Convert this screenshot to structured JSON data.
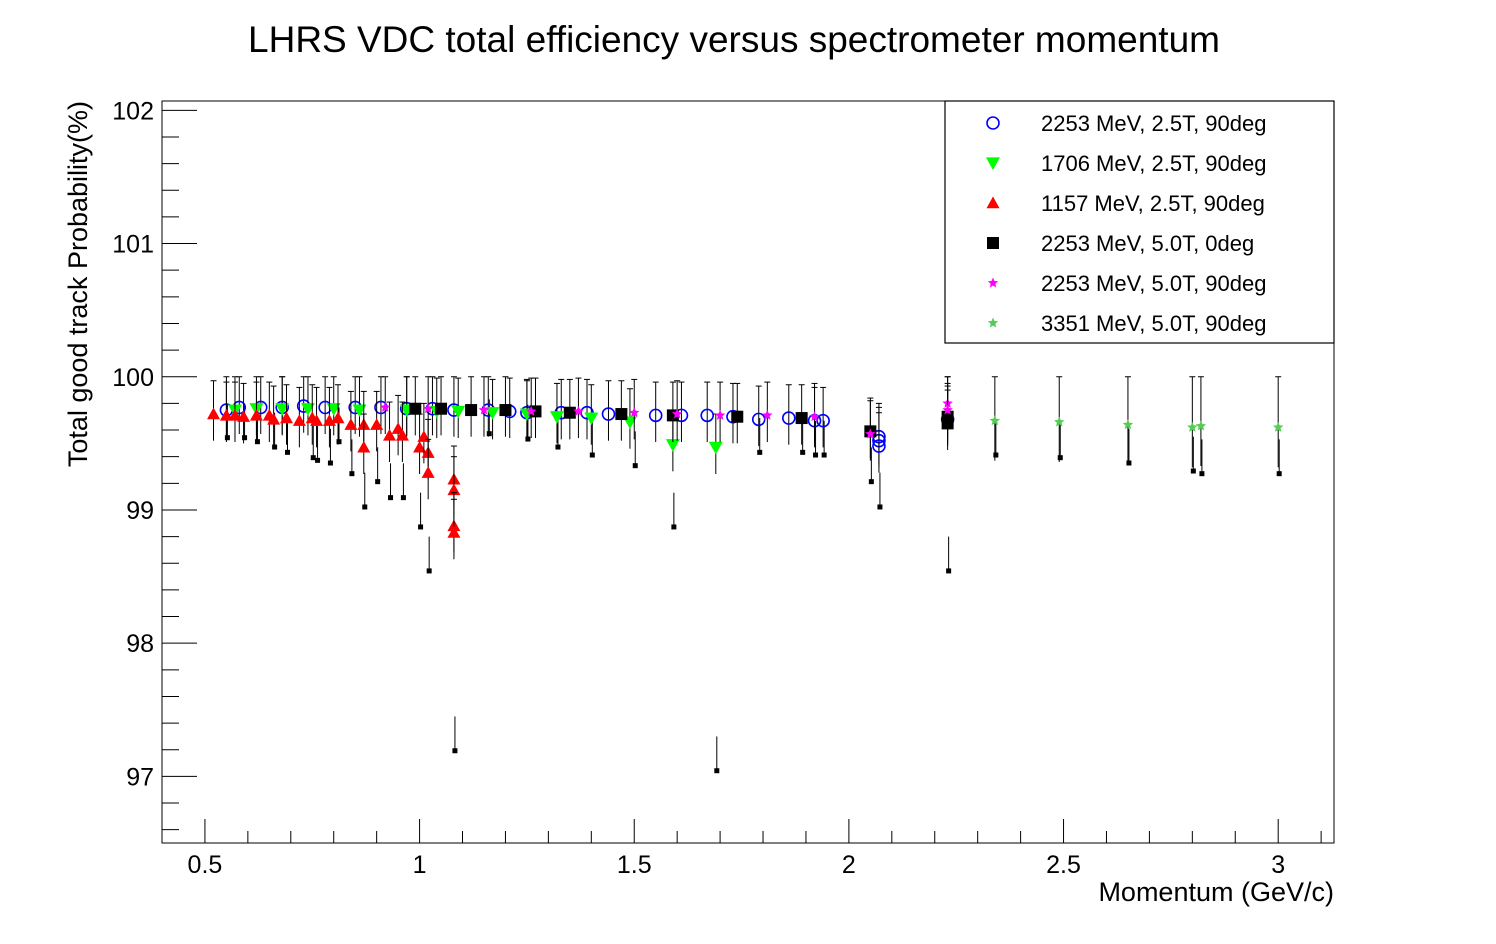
{
  "chart_data": {
    "type": "scatter",
    "title": "LHRS VDC total efficiency versus spectrometer momentum",
    "xlabel": "Momentum (GeV/c)",
    "ylabel": "Total good track Probability(%)",
    "xlim": [
      0.4,
      3.13
    ],
    "ylim": [
      96.5,
      102.07
    ],
    "x_ticks": [
      0.5,
      1,
      1.5,
      2,
      2.5,
      3
    ],
    "x_tick_labels": [
      "0.5",
      "1",
      "1.5",
      "2",
      "2.5",
      "3"
    ],
    "y_ticks": [
      97,
      98,
      99,
      100,
      101,
      102
    ],
    "y_tick_labels": [
      "97",
      "98",
      "99",
      "100",
      "101",
      "102"
    ],
    "legend_position": "top-right",
    "error_lower_color": "#000000",
    "series": [
      {
        "name": "2253 MeV, 2.5T, 90deg",
        "marker": "open-circle",
        "color": "#0000ff",
        "points": [
          {
            "x": 0.55,
            "y": 99.75
          },
          {
            "x": 0.58,
            "y": 99.77
          },
          {
            "x": 0.63,
            "y": 99.77
          },
          {
            "x": 0.68,
            "y": 99.77
          },
          {
            "x": 0.73,
            "y": 99.78
          },
          {
            "x": 0.78,
            "y": 99.77
          },
          {
            "x": 0.85,
            "y": 99.77
          },
          {
            "x": 0.91,
            "y": 99.77
          },
          {
            "x": 0.97,
            "y": 99.76
          },
          {
            "x": 1.03,
            "y": 99.76
          },
          {
            "x": 1.08,
            "y": 99.75
          },
          {
            "x": 1.16,
            "y": 99.75
          },
          {
            "x": 1.21,
            "y": 99.74
          },
          {
            "x": 1.25,
            "y": 99.73
          },
          {
            "x": 1.33,
            "y": 99.73
          },
          {
            "x": 1.39,
            "y": 99.73
          },
          {
            "x": 1.44,
            "y": 99.72
          },
          {
            "x": 1.55,
            "y": 99.71
          },
          {
            "x": 1.61,
            "y": 99.71
          },
          {
            "x": 1.67,
            "y": 99.71
          },
          {
            "x": 1.73,
            "y": 99.7
          },
          {
            "x": 1.79,
            "y": 99.68
          },
          {
            "x": 1.86,
            "y": 99.69
          },
          {
            "x": 1.92,
            "y": 99.67
          },
          {
            "x": 1.94,
            "y": 99.67
          },
          {
            "x": 2.07,
            "y": 99.55
          },
          {
            "x": 2.07,
            "y": 99.52
          },
          {
            "x": 2.07,
            "y": 99.48
          },
          {
            "x": 2.23,
            "y": 99.68
          }
        ],
        "err_up": 0.25,
        "err_down": 0.2
      },
      {
        "name": "1706 MeV, 2.5T, 90deg",
        "marker": "triangle-down",
        "color": "#00ff00",
        "points": [
          {
            "x": 0.57,
            "y": 99.75
          },
          {
            "x": 0.62,
            "y": 99.76
          },
          {
            "x": 0.68,
            "y": 99.76
          },
          {
            "x": 0.74,
            "y": 99.76
          },
          {
            "x": 0.8,
            "y": 99.76
          },
          {
            "x": 0.86,
            "y": 99.75
          },
          {
            "x": 0.97,
            "y": 99.75
          },
          {
            "x": 1.04,
            "y": 99.74
          },
          {
            "x": 1.09,
            "y": 99.74
          },
          {
            "x": 1.17,
            "y": 99.73
          },
          {
            "x": 1.25,
            "y": 99.72
          },
          {
            "x": 1.32,
            "y": 99.7
          },
          {
            "x": 1.4,
            "y": 99.69
          },
          {
            "x": 1.49,
            "y": 99.66
          },
          {
            "x": 1.59,
            "y": 99.49
          },
          {
            "x": 1.69,
            "y": 99.47
          }
        ],
        "err_up": 0.25,
        "err_down": 0.2
      },
      {
        "name": "1157 MeV, 2.5T, 90deg",
        "marker": "triangle-up",
        "color": "#ff0000",
        "points": [
          {
            "x": 0.52,
            "y": 99.72
          },
          {
            "x": 0.55,
            "y": 99.71
          },
          {
            "x": 0.57,
            "y": 99.71
          },
          {
            "x": 0.59,
            "y": 99.7
          },
          {
            "x": 0.62,
            "y": 99.71
          },
          {
            "x": 0.65,
            "y": 99.71
          },
          {
            "x": 0.66,
            "y": 99.68
          },
          {
            "x": 0.69,
            "y": 99.69
          },
          {
            "x": 0.72,
            "y": 99.67
          },
          {
            "x": 0.75,
            "y": 99.69
          },
          {
            "x": 0.76,
            "y": 99.67
          },
          {
            "x": 0.79,
            "y": 99.67
          },
          {
            "x": 0.81,
            "y": 99.69
          },
          {
            "x": 0.84,
            "y": 99.64
          },
          {
            "x": 0.87,
            "y": 99.64
          },
          {
            "x": 0.87,
            "y": 99.47
          },
          {
            "x": 0.9,
            "y": 99.64
          },
          {
            "x": 0.93,
            "y": 99.56
          },
          {
            "x": 0.95,
            "y": 99.61
          },
          {
            "x": 0.96,
            "y": 99.56
          },
          {
            "x": 1.0,
            "y": 99.47
          },
          {
            "x": 1.01,
            "y": 99.55
          },
          {
            "x": 1.02,
            "y": 99.43
          },
          {
            "x": 1.02,
            "y": 99.28
          },
          {
            "x": 1.08,
            "y": 99.23
          },
          {
            "x": 1.08,
            "y": 99.15
          },
          {
            "x": 1.08,
            "y": 98.88
          },
          {
            "x": 1.08,
            "y": 98.83
          }
        ],
        "err_up": 0.25,
        "err_down": 0.2
      },
      {
        "name": "2253 MeV, 5.0T, 0deg",
        "marker": "filled-square",
        "color": "#000000",
        "points": [
          {
            "x": 0.99,
            "y": 99.76
          },
          {
            "x": 1.05,
            "y": 99.76
          },
          {
            "x": 1.12,
            "y": 99.75
          },
          {
            "x": 1.2,
            "y": 99.75
          },
          {
            "x": 1.27,
            "y": 99.74
          },
          {
            "x": 1.35,
            "y": 99.73
          },
          {
            "x": 1.47,
            "y": 99.72
          },
          {
            "x": 1.59,
            "y": 99.71
          },
          {
            "x": 1.74,
            "y": 99.7
          },
          {
            "x": 1.89,
            "y": 99.69
          },
          {
            "x": 2.05,
            "y": 99.59
          },
          {
            "x": 2.23,
            "y": 99.65
          },
          {
            "x": 2.23,
            "y": 99.7
          }
        ],
        "err_up": 0.25,
        "err_down": 0.2
      },
      {
        "name": "2253 MeV, 5.0T, 90deg",
        "marker": "star",
        "color": "#ff00ff",
        "points": [
          {
            "x": 0.92,
            "y": 99.77
          },
          {
            "x": 1.02,
            "y": 99.76
          },
          {
            "x": 1.15,
            "y": 99.75
          },
          {
            "x": 1.26,
            "y": 99.74
          },
          {
            "x": 1.37,
            "y": 99.74
          },
          {
            "x": 1.5,
            "y": 99.73
          },
          {
            "x": 1.6,
            "y": 99.72
          },
          {
            "x": 1.7,
            "y": 99.71
          },
          {
            "x": 1.81,
            "y": 99.71
          },
          {
            "x": 1.92,
            "y": 99.7
          },
          {
            "x": 2.05,
            "y": 99.57
          },
          {
            "x": 2.23,
            "y": 99.8
          },
          {
            "x": 2.23,
            "y": 99.75
          }
        ],
        "err_up": 0.25,
        "err_down": 0.2
      },
      {
        "name": "3351 MeV, 5.0T, 90deg",
        "marker": "star",
        "color": "#55cc55",
        "points": [
          {
            "x": 2.34,
            "y": 99.67
          },
          {
            "x": 2.49,
            "y": 99.66
          },
          {
            "x": 2.65,
            "y": 99.64
          },
          {
            "x": 2.8,
            "y": 99.62
          },
          {
            "x": 2.82,
            "y": 99.63
          },
          {
            "x": 3.0,
            "y": 99.62
          }
        ],
        "err_up": 0.38,
        "err_down": 0.3
      }
    ],
    "lower_error_tails": [
      {
        "x": 0.55,
        "y_lo": 99.55
      },
      {
        "x": 0.59,
        "y_lo": 99.55
      },
      {
        "x": 0.62,
        "y_lo": 99.52
      },
      {
        "x": 0.66,
        "y_lo": 99.48
      },
      {
        "x": 0.69,
        "y_lo": 99.44
      },
      {
        "x": 0.75,
        "y_lo": 99.4
      },
      {
        "x": 0.76,
        "y_lo": 99.38
      },
      {
        "x": 0.79,
        "y_lo": 99.36
      },
      {
        "x": 0.81,
        "y_lo": 99.52
      },
      {
        "x": 0.84,
        "y_lo": 99.28
      },
      {
        "x": 0.87,
        "y_lo": 99.03
      },
      {
        "x": 0.9,
        "y_lo": 99.22
      },
      {
        "x": 0.93,
        "y_lo": 99.1
      },
      {
        "x": 0.96,
        "y_lo": 99.1
      },
      {
        "x": 1.0,
        "y_lo": 98.88
      },
      {
        "x": 1.02,
        "y_lo": 98.55
      },
      {
        "x": 1.08,
        "y_lo": 97.2
      },
      {
        "x": 1.16,
        "y_lo": 99.58
      },
      {
        "x": 1.25,
        "y_lo": 99.54
      },
      {
        "x": 1.32,
        "y_lo": 99.48
      },
      {
        "x": 1.4,
        "y_lo": 99.42
      },
      {
        "x": 1.5,
        "y_lo": 99.34
      },
      {
        "x": 1.59,
        "y_lo": 98.88
      },
      {
        "x": 1.69,
        "y_lo": 97.05
      },
      {
        "x": 1.79,
        "y_lo": 99.44
      },
      {
        "x": 1.89,
        "y_lo": 99.44
      },
      {
        "x": 1.92,
        "y_lo": 99.42
      },
      {
        "x": 1.94,
        "y_lo": 99.42
      },
      {
        "x": 2.05,
        "y_lo": 99.22
      },
      {
        "x": 2.07,
        "y_lo": 99.03
      },
      {
        "x": 2.23,
        "y_lo": 98.55
      },
      {
        "x": 2.34,
        "y_lo": 99.42
      },
      {
        "x": 2.49,
        "y_lo": 99.4
      },
      {
        "x": 2.65,
        "y_lo": 99.36
      },
      {
        "x": 2.8,
        "y_lo": 99.3
      },
      {
        "x": 2.82,
        "y_lo": 99.28
      },
      {
        "x": 3.0,
        "y_lo": 99.28
      }
    ]
  }
}
